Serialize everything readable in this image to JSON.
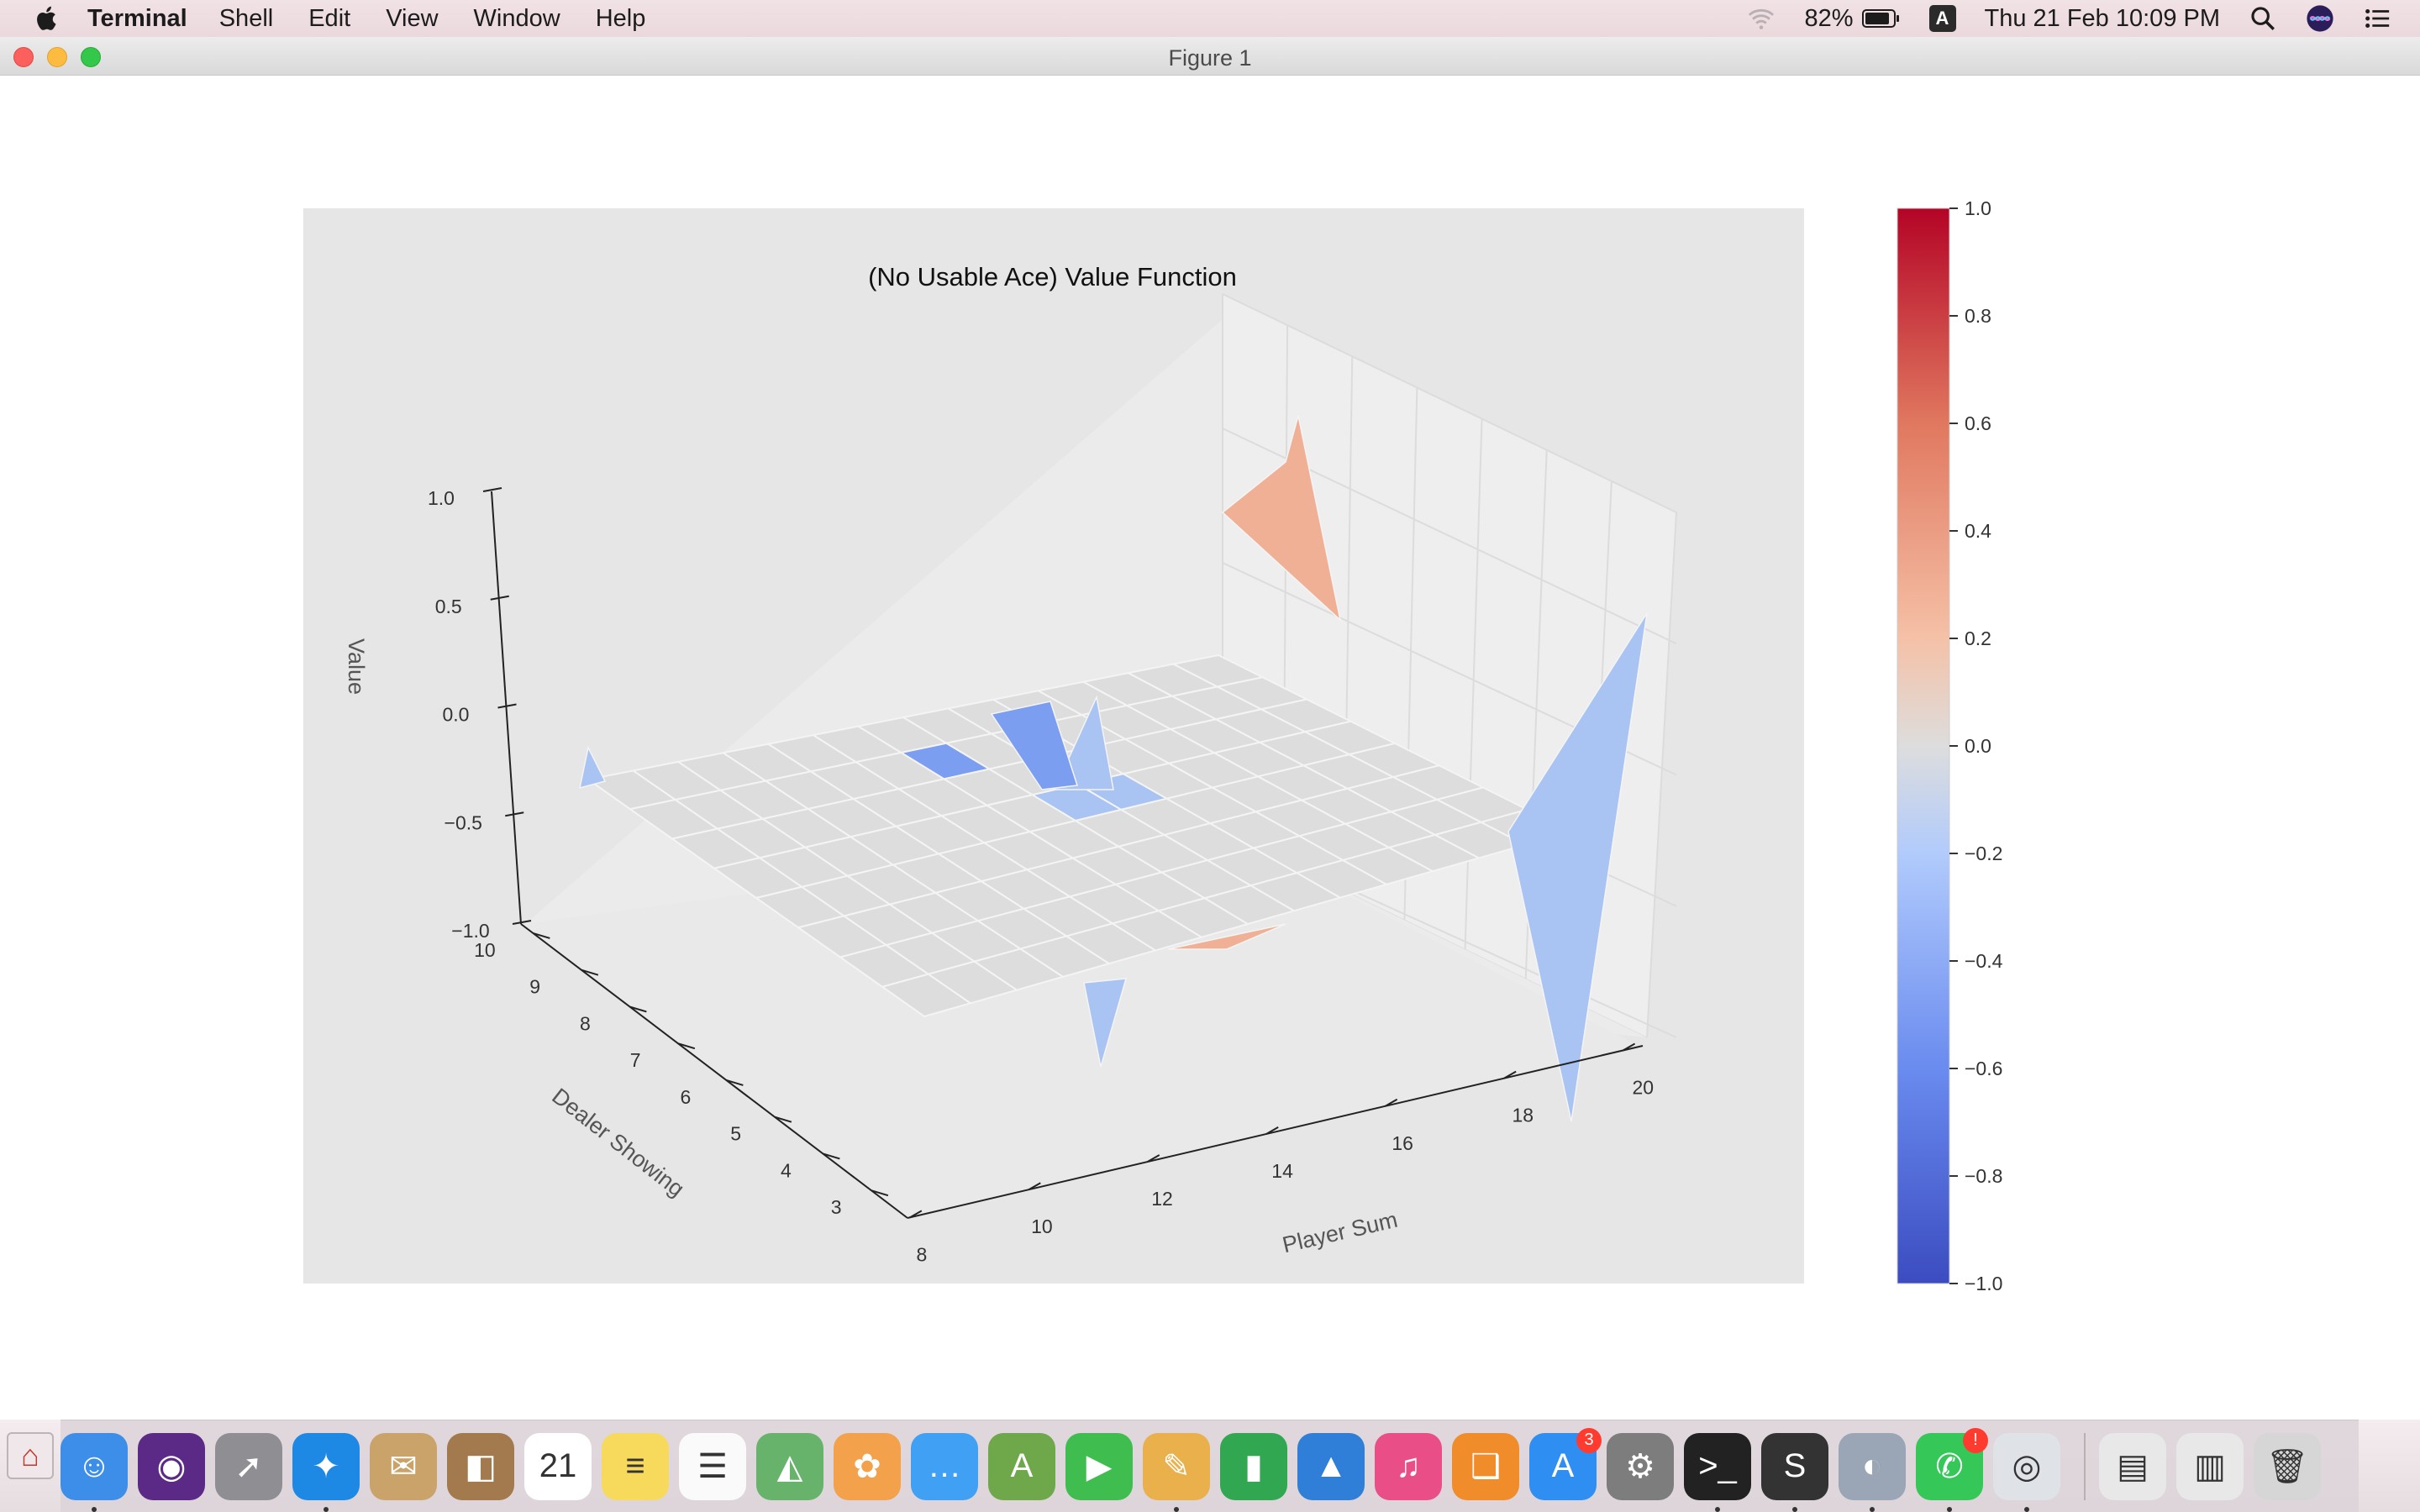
{
  "menubar": {
    "app_name": "Terminal",
    "menus": [
      "Shell",
      "Edit",
      "View",
      "Window",
      "Help"
    ],
    "battery": "82%",
    "input_source": "A",
    "datetime": "Thu 21 Feb  10:09 PM"
  },
  "window": {
    "title": "Figure 1"
  },
  "chart_data": {
    "type": "surface3d",
    "title": "(No Usable Ace) Value Function",
    "xlabel": "Player Sum",
    "ylabel": "Dealer Showing",
    "zlabel": "Value",
    "x_ticks": [
      "8",
      "10",
      "12",
      "14",
      "16",
      "18",
      "20"
    ],
    "y_ticks": [
      "3",
      "4",
      "5",
      "6",
      "7",
      "8",
      "9",
      "10"
    ],
    "z_ticks": [
      "1.0",
      "0.5",
      "0.0",
      "−0.5",
      "−1.0"
    ],
    "zlim": [
      -1.0,
      1.0
    ],
    "colormap": "coolwarm",
    "colorbar_ticks": [
      "1.0",
      "0.8",
      "0.6",
      "0.4",
      "0.2",
      "0.0",
      "−0.2",
      "−0.4",
      "−0.6",
      "−0.8",
      "−1.0"
    ],
    "colorbar_range": [
      -1.0,
      1.0
    ],
    "grid": true,
    "surface_colors": {
      "neutral": "#dddddd",
      "negative": "#a9c3f2",
      "strong_negative": "#7c9ef0",
      "positive": "#f0b096"
    }
  },
  "dock": {
    "items": [
      {
        "name": "finder",
        "color": "#3d8ee8",
        "glyph": "☺"
      },
      {
        "name": "siri",
        "color": "#5b2a86",
        "glyph": "◉"
      },
      {
        "name": "launchpad",
        "color": "#8e8e93",
        "glyph": "➚"
      },
      {
        "name": "safari",
        "color": "#1e88e5",
        "glyph": "✦"
      },
      {
        "name": "mail",
        "color": "#c9a36a",
        "glyph": "✉"
      },
      {
        "name": "contacts",
        "color": "#a27a4d",
        "glyph": "◧"
      },
      {
        "name": "calendar",
        "color": "#ffffff",
        "glyph": "21"
      },
      {
        "name": "notes",
        "color": "#f7d95b",
        "glyph": "≡"
      },
      {
        "name": "reminders",
        "color": "#fafafa",
        "glyph": "☰"
      },
      {
        "name": "maps",
        "color": "#68b36b",
        "glyph": "◭"
      },
      {
        "name": "photos",
        "color": "#f3a14b",
        "glyph": "✿"
      },
      {
        "name": "messages",
        "color": "#3fa0f4",
        "glyph": "…"
      },
      {
        "name": "android-studio",
        "color": "#6fa84a",
        "glyph": "A"
      },
      {
        "name": "facetime",
        "color": "#3fbe4f",
        "glyph": "▶"
      },
      {
        "name": "preview",
        "color": "#e9b04b",
        "glyph": "✎"
      },
      {
        "name": "numbers",
        "color": "#31a752",
        "glyph": "▮"
      },
      {
        "name": "keynote",
        "color": "#2f7fd8",
        "glyph": "▲"
      },
      {
        "name": "itunes",
        "color": "#e94e87",
        "glyph": "♫"
      },
      {
        "name": "books",
        "color": "#f08d2a",
        "glyph": "❑"
      },
      {
        "name": "app-store",
        "color": "#2f8ef2",
        "glyph": "A",
        "badge": "3"
      },
      {
        "name": "system-preferences",
        "color": "#7d7d7d",
        "glyph": "⚙"
      },
      {
        "name": "terminal",
        "color": "#222222",
        "glyph": ">_"
      },
      {
        "name": "sublime-text",
        "color": "#333333",
        "glyph": "S"
      },
      {
        "name": "preview-2",
        "color": "#9aa6b5",
        "glyph": "◐"
      },
      {
        "name": "whatsapp",
        "color": "#35c859",
        "glyph": "✆",
        "badge": "!"
      },
      {
        "name": "chrome",
        "color": "#dfe3e8",
        "glyph": "◎"
      },
      {
        "name": "downloads-stack",
        "color": "#e8e8e8",
        "glyph": "▤"
      },
      {
        "name": "documents-stack",
        "color": "#e8e8e8",
        "glyph": "▥"
      },
      {
        "name": "trash",
        "color": "#d6d6d6",
        "glyph": "🗑"
      }
    ]
  }
}
